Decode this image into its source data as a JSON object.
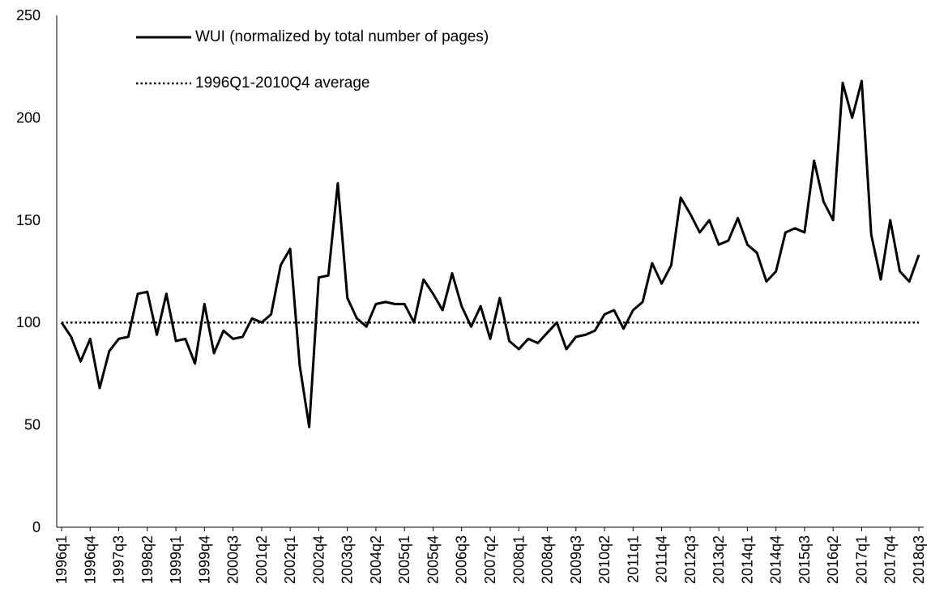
{
  "chart_data": {
    "type": "line",
    "categories": [
      "1996q1",
      null,
      null,
      "1996q4",
      null,
      null,
      "1997q3",
      null,
      null,
      "1998q2",
      null,
      null,
      "1999q1",
      null,
      null,
      "1999q4",
      null,
      null,
      "2000q3",
      null,
      null,
      "2001q2",
      null,
      null,
      "2002q1",
      null,
      null,
      "2002q4",
      null,
      null,
      "2003q3",
      null,
      null,
      "2004q2",
      null,
      null,
      "2005q1",
      null,
      null,
      "2005q4",
      null,
      null,
      "2006q3",
      null,
      null,
      "2007q2",
      null,
      null,
      "2008q1",
      null,
      null,
      "2008q4",
      null,
      null,
      "2009q3",
      null,
      null,
      "2010q2",
      null,
      null,
      "2011q1",
      null,
      null,
      "2011q4",
      null,
      null,
      "2012q3",
      null,
      null,
      "2013q2",
      null,
      null,
      "2014q1",
      null,
      null,
      "2014q4",
      null,
      null,
      "2015q3",
      null,
      null,
      "2016q2",
      null,
      null,
      "2017q1",
      null,
      null,
      "2017q4",
      null,
      null,
      "2018q3"
    ],
    "series": [
      {
        "name": "WUI (normalized by total number of pages)",
        "color": "#000000",
        "style": "solid",
        "values": [
          100,
          93,
          81,
          92,
          68,
          86,
          92,
          93,
          114,
          115,
          94,
          114,
          91,
          92,
          80,
          109,
          85,
          96,
          92,
          93,
          102,
          100,
          104,
          128,
          136,
          79,
          49,
          122,
          123,
          168,
          112,
          102,
          98,
          109,
          110,
          109,
          109,
          100,
          121,
          114,
          106,
          124,
          108,
          98,
          108,
          92,
          112,
          91,
          87,
          92,
          90,
          95,
          100,
          87,
          93,
          94,
          96,
          104,
          106,
          97,
          106,
          110,
          129,
          119,
          128,
          161,
          153,
          144,
          150,
          138,
          140,
          151,
          138,
          134,
          120,
          125,
          144,
          146,
          144,
          179,
          159,
          150,
          217,
          200,
          218,
          143,
          121,
          150,
          125,
          120,
          133
        ]
      },
      {
        "name": "1996Q1-2010Q4 average",
        "color": "#000000",
        "style": "dotted",
        "value": 100
      }
    ],
    "ylim": [
      0,
      250
    ],
    "yticks": [
      0,
      50,
      100,
      150,
      200,
      250
    ],
    "grid": false
  }
}
